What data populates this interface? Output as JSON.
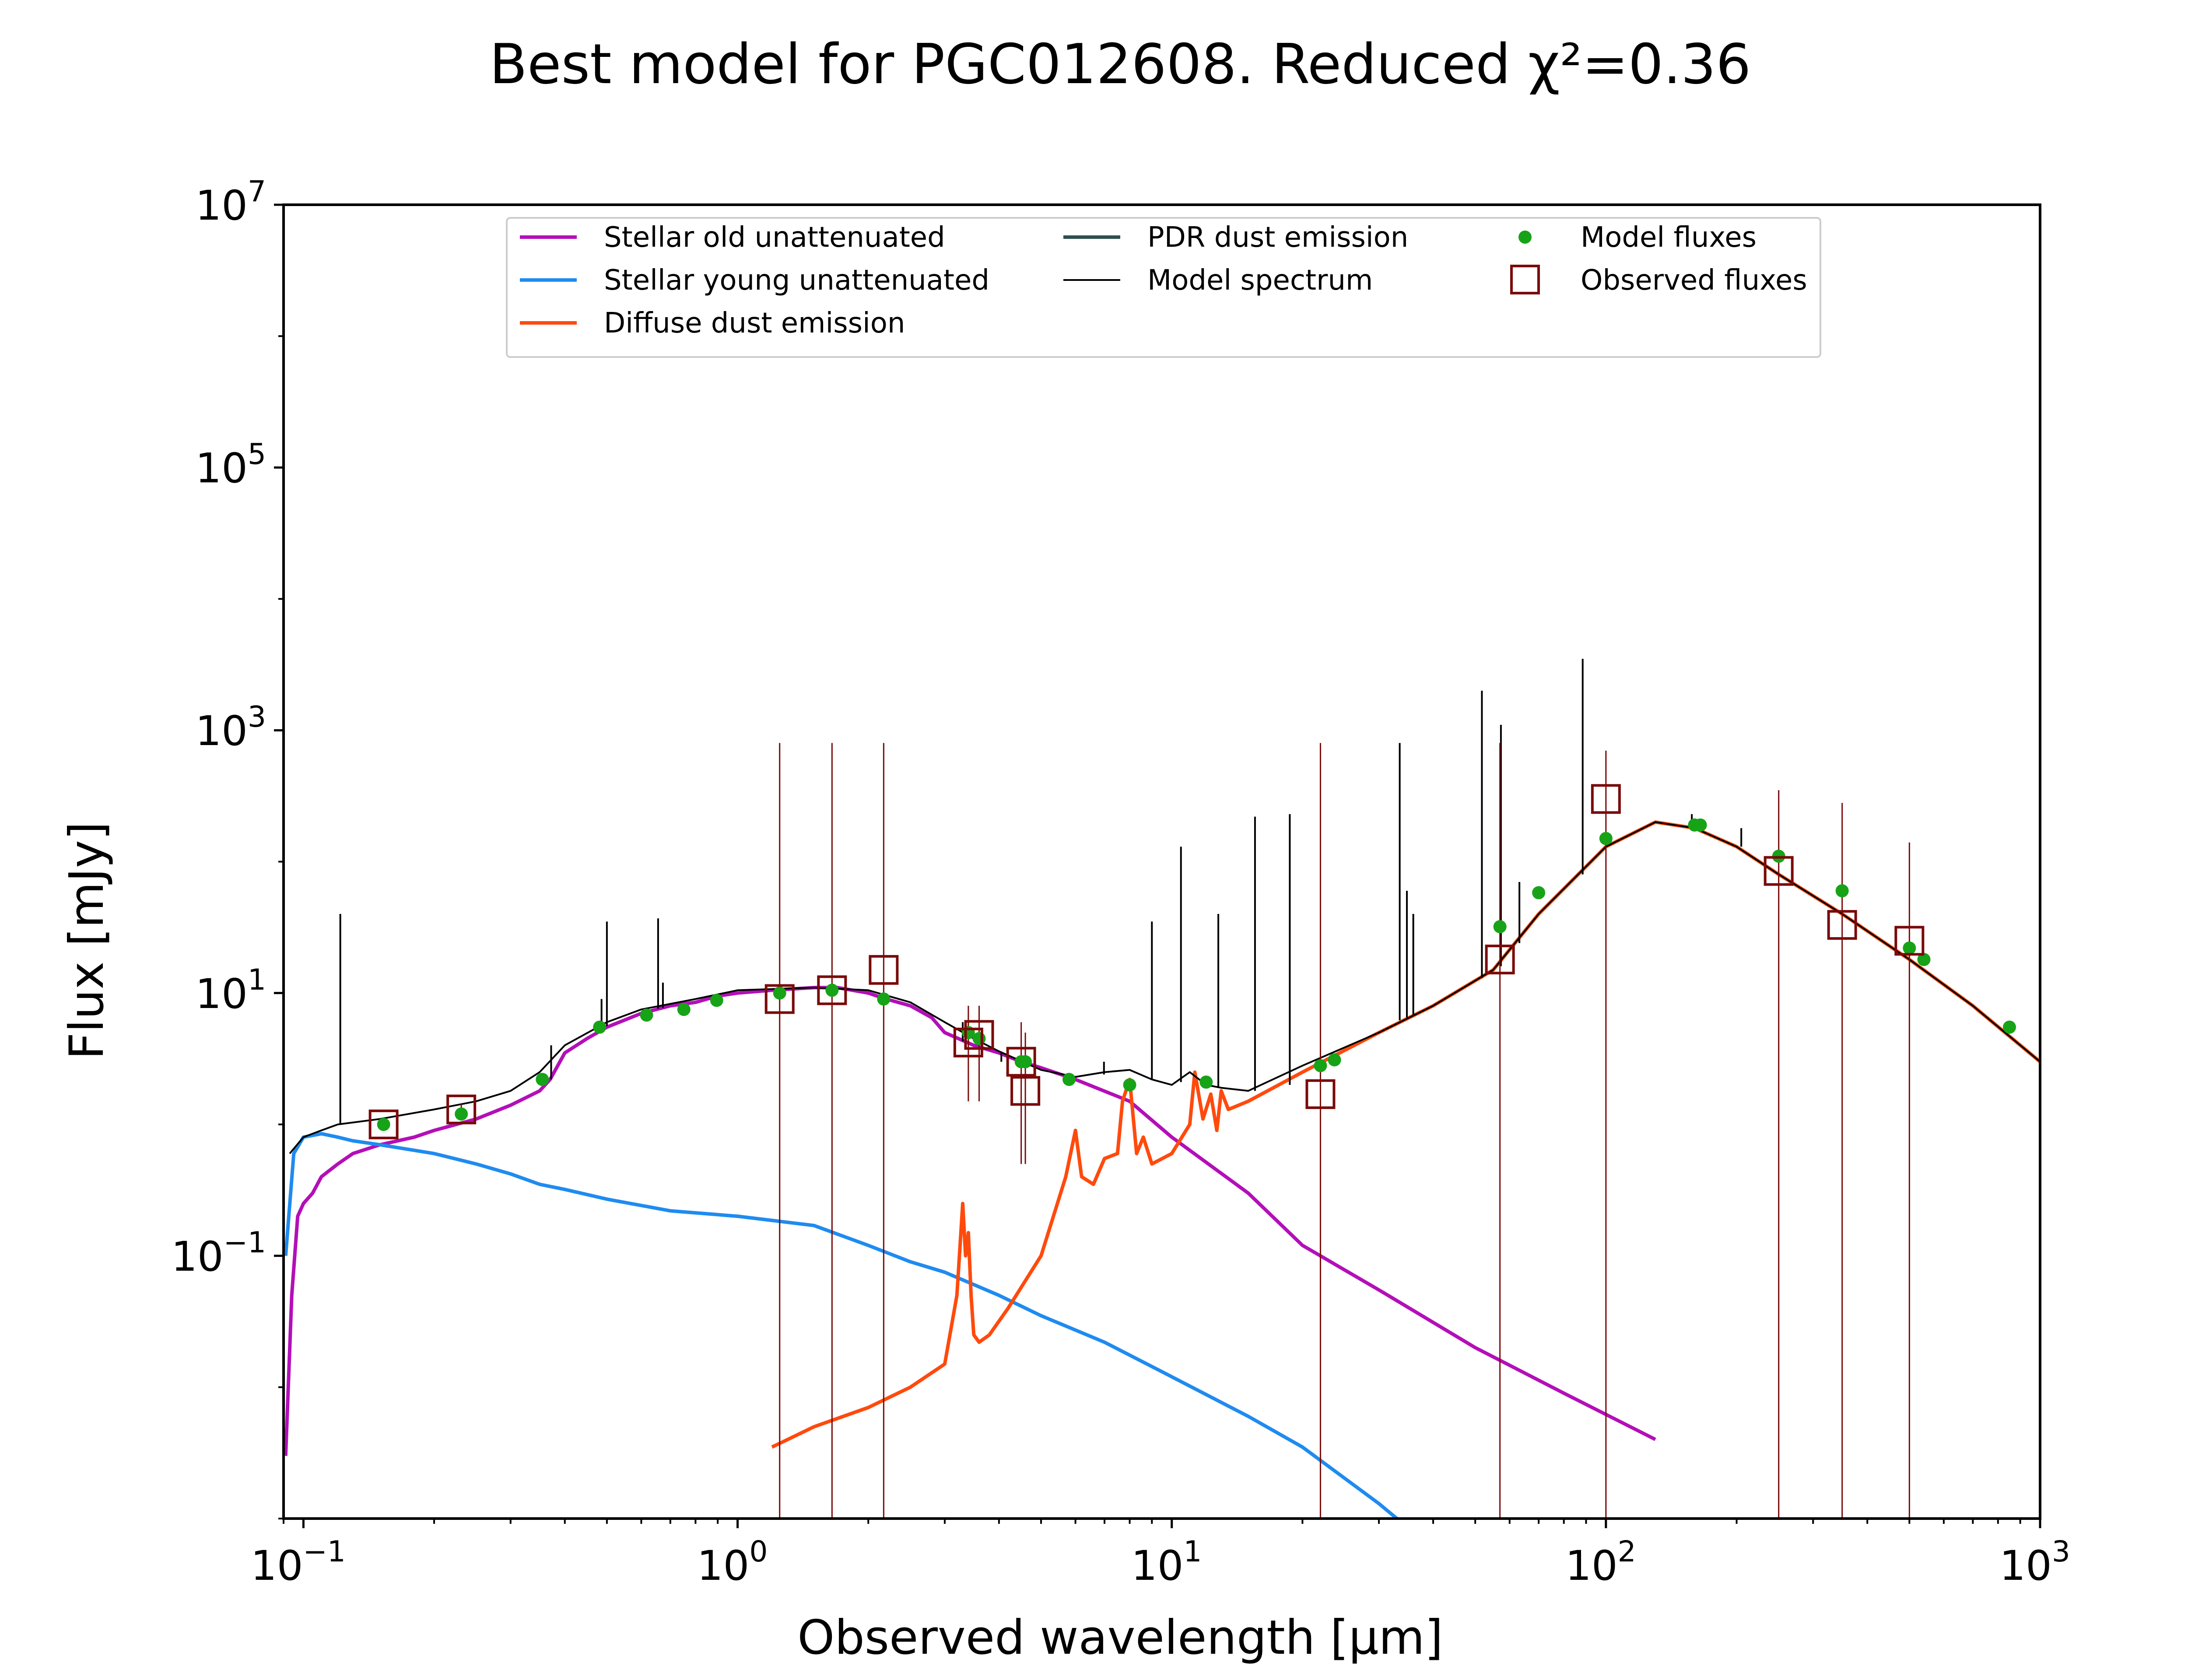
{
  "chart_data": {
    "type": "line",
    "title": "Best model for PGC012608. Reduced χ²=0.36",
    "xlabel": "Observed wavelength [μm]",
    "ylabel": "Flux [mJy]",
    "xscale": "log",
    "yscale": "log",
    "xlim": [
      0.09,
      1000
    ],
    "ylim": [
      0.001,
      10000000
    ],
    "x_ticks": [
      {
        "value": 0.1,
        "base": "10",
        "exp": "−1"
      },
      {
        "value": 1,
        "base": "10",
        "exp": "0"
      },
      {
        "value": 10,
        "base": "10",
        "exp": "1"
      },
      {
        "value": 100,
        "base": "10",
        "exp": "2"
      },
      {
        "value": 1000,
        "base": "10",
        "exp": "3"
      }
    ],
    "y_ticks": [
      {
        "value": 0.1,
        "base": "10",
        "exp": "−1"
      },
      {
        "value": 10,
        "base": "10",
        "exp": "1"
      },
      {
        "value": 1000,
        "base": "10",
        "exp": "3"
      },
      {
        "value": 100000,
        "base": "10",
        "exp": "5"
      },
      {
        "value": 10000000,
        "base": "10",
        "exp": "7"
      }
    ],
    "grid": false,
    "legend_position": "top",
    "legend": [
      {
        "label": "Stellar old unattenuated",
        "kind": "line",
        "color": "#b30fb8"
      },
      {
        "label": "Stellar young unattenuated",
        "kind": "line",
        "color": "#1f8bf0"
      },
      {
        "label": "Diffuse dust emission",
        "kind": "line",
        "color": "#ff4a0d"
      },
      {
        "label": "PDR dust emission",
        "kind": "line",
        "color": "#2f4f4f"
      },
      {
        "label": "Model spectrum",
        "kind": "thinline",
        "color": "#000000"
      },
      {
        "label": "Model fluxes",
        "kind": "dot",
        "color": "#17a317"
      },
      {
        "label": "Observed fluxes",
        "kind": "square",
        "color": "#7a0a0a"
      }
    ],
    "series": [
      {
        "name": "Stellar old unattenuated",
        "color": "#b30fb8",
        "x": [
          0.091,
          0.094,
          0.097,
          0.1,
          0.105,
          0.11,
          0.12,
          0.13,
          0.15,
          0.18,
          0.2,
          0.25,
          0.3,
          0.35,
          0.37,
          0.4,
          0.45,
          0.5,
          0.6,
          0.7,
          0.8,
          0.9,
          1.0,
          1.2,
          1.5,
          1.7,
          2.0,
          2.2,
          2.5,
          2.8,
          3.0,
          3.5,
          4.0,
          4.5,
          5.0,
          6.0,
          8.0,
          10,
          15,
          20,
          30,
          50,
          80,
          130
        ],
        "y": [
          0.003,
          0.05,
          0.2,
          0.25,
          0.3,
          0.4,
          0.5,
          0.6,
          0.7,
          0.8,
          0.9,
          1.1,
          1.4,
          1.8,
          2.2,
          3.5,
          4.5,
          5.5,
          7,
          8,
          8.5,
          9.5,
          10,
          10.5,
          11,
          11,
          10,
          9,
          8,
          6.5,
          5,
          4,
          3.5,
          3.0,
          2.7,
          2.2,
          1.5,
          0.8,
          0.3,
          0.12,
          0.055,
          0.02,
          0.009,
          0.004
        ]
      },
      {
        "name": "Stellar young unattenuated",
        "color": "#1f8bf0",
        "x": [
          0.091,
          0.095,
          0.1,
          0.11,
          0.12,
          0.13,
          0.15,
          0.2,
          0.25,
          0.3,
          0.35,
          0.4,
          0.5,
          0.7,
          1.0,
          1.5,
          2.0,
          2.5,
          3.0,
          4.0,
          5.0,
          7.0,
          10,
          15,
          20,
          30,
          33
        ],
        "y": [
          0.1,
          0.6,
          0.8,
          0.85,
          0.8,
          0.75,
          0.7,
          0.6,
          0.5,
          0.42,
          0.35,
          0.32,
          0.27,
          0.22,
          0.2,
          0.17,
          0.12,
          0.09,
          0.075,
          0.05,
          0.035,
          0.022,
          0.012,
          0.006,
          0.0035,
          0.0013,
          0.001
        ]
      },
      {
        "name": "Diffuse dust emission",
        "color": "#ff4a0d",
        "x": [
          1.2,
          1.5,
          2.0,
          2.5,
          3.0,
          3.2,
          3.3,
          3.35,
          3.4,
          3.45,
          3.5,
          3.6,
          3.8,
          4.2,
          5.0,
          5.7,
          6.0,
          6.2,
          6.6,
          7.0,
          7.5,
          7.7,
          8.0,
          8.3,
          8.6,
          9.0,
          10.0,
          11.0,
          11.3,
          11.8,
          12.3,
          12.7,
          13.0,
          13.5,
          15.0,
          20.0,
          30.0,
          40.0,
          55.0,
          70.0,
          100.0,
          130.0,
          160.0,
          200.0,
          250.0,
          350.0,
          500.0,
          700.0,
          1000.0
        ],
        "y": [
          0.0035,
          0.005,
          0.007,
          0.01,
          0.015,
          0.05,
          0.25,
          0.1,
          0.15,
          0.05,
          0.025,
          0.022,
          0.025,
          0.04,
          0.1,
          0.4,
          0.9,
          0.4,
          0.35,
          0.55,
          0.6,
          1.5,
          2.2,
          0.6,
          0.8,
          0.5,
          0.6,
          1.0,
          2.5,
          1.1,
          1.7,
          0.9,
          1.8,
          1.3,
          1.5,
          2.5,
          5,
          8,
          15,
          40,
          130,
          200,
          180,
          130,
          80,
          40,
          18,
          8,
          3
        ]
      },
      {
        "name": "Model spectrum",
        "color": "#000000",
        "x": [
          0.093,
          0.1,
          0.11,
          0.12,
          0.15,
          0.2,
          0.25,
          0.3,
          0.35,
          0.4,
          0.5,
          0.6,
          0.8,
          1.0,
          1.5,
          2.0,
          2.5,
          3.0,
          3.5,
          4.0,
          5.0,
          6.0,
          7.0,
          8.0,
          9.0,
          10.0,
          11.0,
          12.0,
          13.0,
          15.0,
          20.0,
          30.0,
          40.0,
          55.0,
          70.0,
          100.0,
          130.0,
          160.0,
          200.0,
          250.0,
          350.0,
          500.0,
          700.0,
          1000.0
        ],
        "y": [
          0.6,
          0.8,
          0.9,
          1.0,
          1.1,
          1.3,
          1.5,
          1.8,
          2.5,
          4.0,
          6.0,
          7.5,
          9.0,
          10.5,
          11.0,
          10.5,
          8.5,
          6.0,
          4.5,
          3.6,
          2.6,
          2.3,
          2.5,
          2.6,
          2.2,
          2.0,
          2.5,
          2.0,
          1.9,
          1.8,
          2.8,
          5.0,
          8.0,
          15.0,
          40.0,
          130.0,
          200.0,
          180.0,
          130.0,
          80.0,
          40.0,
          18.0,
          8.0,
          3.0
        ]
      }
    ],
    "emission_lines": [
      {
        "x": 0.1216,
        "y_top": 40,
        "y_base": 1.0
      },
      {
        "x": 0.372,
        "y_top": 4,
        "y_base": 2.2
      },
      {
        "x": 0.486,
        "y_top": 9,
        "y_base": 5.5
      },
      {
        "x": 0.5,
        "y_top": 35,
        "y_base": 5.6
      },
      {
        "x": 0.656,
        "y_top": 37,
        "y_base": 7.6
      },
      {
        "x": 0.673,
        "y_top": 12,
        "y_base": 7.7
      },
      {
        "x": 3.3,
        "y_top": 6,
        "y_base": 4.3
      },
      {
        "x": 4.05,
        "y_top": 3,
        "y_base": 3.5
      },
      {
        "x": 6.98,
        "y_top": 3,
        "y_base": 2.4
      },
      {
        "x": 9.0,
        "y_top": 35,
        "y_base": 2.2
      },
      {
        "x": 10.5,
        "y_top": 130,
        "y_base": 2.1
      },
      {
        "x": 12.8,
        "y_top": 40,
        "y_base": 1.9
      },
      {
        "x": 15.55,
        "y_top": 220,
        "y_base": 1.8
      },
      {
        "x": 18.7,
        "y_top": 230,
        "y_base": 2.0
      },
      {
        "x": 33.5,
        "y_top": 800,
        "y_base": 6.2
      },
      {
        "x": 34.8,
        "y_top": 60,
        "y_base": 6.5
      },
      {
        "x": 36.0,
        "y_top": 40,
        "y_base": 6.8
      },
      {
        "x": 51.8,
        "y_top": 2000,
        "y_base": 13
      },
      {
        "x": 57.3,
        "y_top": 1100,
        "y_base": 16
      },
      {
        "x": 63.2,
        "y_top": 70,
        "y_base": 24
      },
      {
        "x": 88.4,
        "y_top": 3500,
        "y_base": 80
      },
      {
        "x": 145.5,
        "y_top": 200,
        "y_base": 200
      },
      {
        "x": 157.7,
        "y_top": 230,
        "y_base": 190
      },
      {
        "x": 205.0,
        "y_top": 180,
        "y_base": 130
      }
    ],
    "model_fluxes": {
      "x": [
        0.153,
        0.231,
        0.355,
        0.481,
        0.617,
        0.752,
        0.895,
        1.25,
        1.65,
        2.17,
        3.4,
        3.6,
        4.5,
        4.6,
        5.8,
        8.0,
        12.0,
        22.0,
        23.7,
        57,
        70,
        100,
        160,
        165,
        250,
        350,
        500,
        540,
        850
      ],
      "y": [
        1.0,
        1.2,
        2.2,
        5.5,
        6.8,
        7.5,
        8.8,
        10,
        10.5,
        9,
        5,
        4.5,
        3.0,
        3.0,
        2.2,
        2.0,
        2.1,
        2.8,
        3.1,
        32,
        58,
        150,
        190,
        190,
        110,
        60,
        22,
        18,
        5.5
      ]
    },
    "observed_fluxes": {
      "x": [
        0.153,
        0.231,
        1.25,
        1.65,
        2.17,
        3.4,
        3.6,
        4.5,
        4.6,
        22.0,
        57.0,
        100.0,
        250.0,
        350.0,
        500.0
      ],
      "y": [
        1.0,
        1.3,
        9.0,
        10.5,
        15.0,
        4.2,
        4.8,
        3.0,
        1.8,
        1.7,
        18.0,
        300.0,
        85.0,
        33.0,
        25.0
      ],
      "err_lo": [
        0.9,
        1.15,
        0.001,
        0.001,
        0.001,
        1.5,
        1.5,
        0.5,
        0.5,
        0.001,
        0.001,
        0.001,
        0.001,
        0.001,
        0.001
      ],
      "err_hi": [
        1.1,
        1.45,
        800,
        800,
        800,
        8,
        8,
        6,
        5,
        800,
        800,
        700,
        350,
        280,
        140
      ]
    }
  }
}
